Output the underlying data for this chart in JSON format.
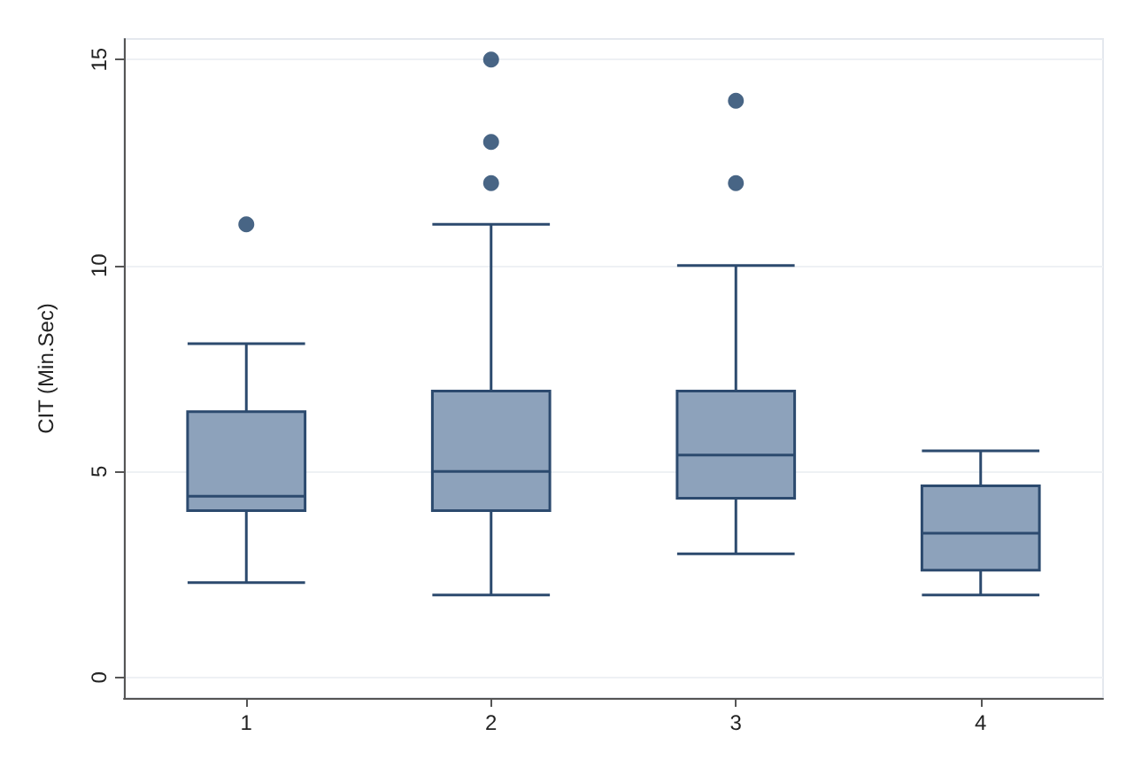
{
  "chart_data": {
    "type": "box",
    "ylabel": "CIT (Min.Sec)",
    "categories": [
      "1",
      "2",
      "3",
      "4"
    ],
    "color": "#8da2bb",
    "ylim": [
      -0.5,
      15.5
    ],
    "yticks": [
      0,
      5,
      10,
      15
    ],
    "grid": "y",
    "boxes": [
      {
        "low": 2.3,
        "q1": 4.05,
        "median": 4.4,
        "q3": 6.45,
        "high": 8.1,
        "outliers": [
          11
        ]
      },
      {
        "low": 2,
        "q1": 4.05,
        "median": 5,
        "q3": 6.95,
        "high": 11,
        "outliers": [
          12,
          13,
          15
        ]
      },
      {
        "low": 3,
        "q1": 4.35,
        "median": 5.4,
        "q3": 6.95,
        "high": 10,
        "outliers": [
          12,
          14
        ]
      },
      {
        "low": 2,
        "q1": 2.6,
        "median": 3.5,
        "q3": 4.65,
        "high": 5.5
      }
    ]
  }
}
